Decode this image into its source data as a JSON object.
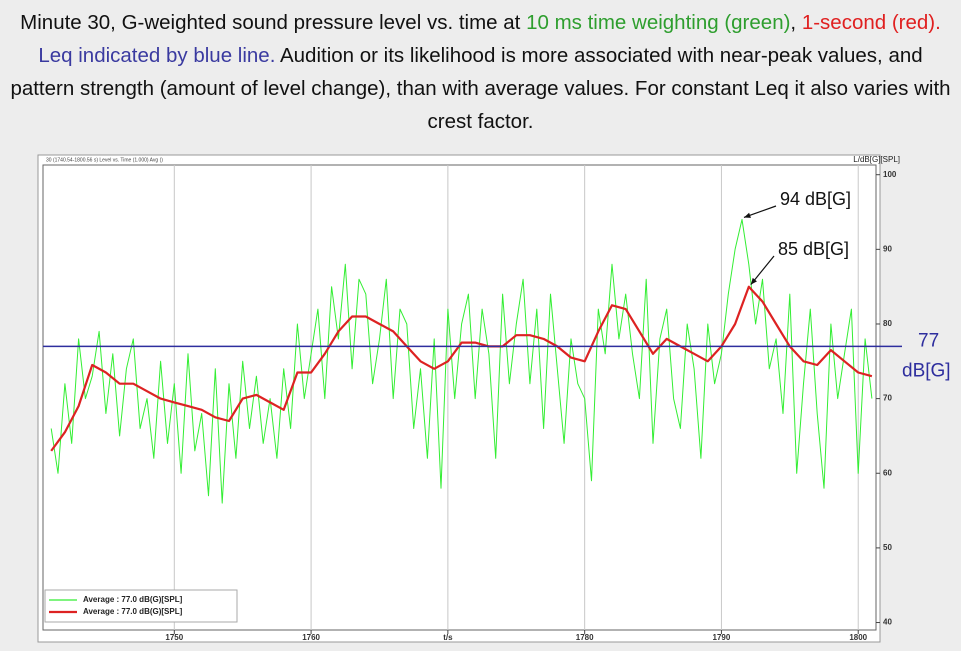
{
  "chart_data": {
    "type": "line",
    "title_parts": [
      {
        "text": "Minute 30, G-weighted sound pressure level vs. time at ",
        "color": "#111111"
      },
      {
        "text": "10 ms time weighting (green)",
        "color": "#2e9e2e"
      },
      {
        "text": ", ",
        "color": "#111111"
      },
      {
        "text": "1-second (red).",
        "color": "#e02020"
      },
      {
        "text": " ",
        "color": "#111111"
      },
      {
        "text": "Leq indicated by blue line.",
        "color": "#3a3aa0"
      },
      {
        "text": " Audition or its likelihood is more associated with near-peak values, and pattern strength (amount of level change), than with average values. For constant Leq it also varies with crest factor.",
        "color": "#111111"
      }
    ],
    "subtitle": "30 (1740.54-1800.56 s) Level vs. Time (1.000) Avg ()",
    "y_axis_label": "L/dB[G][SPL]",
    "xlim": [
      1740.4,
      1801.3
    ],
    "xticks": [
      1750,
      1760,
      {
        "value": 1770,
        "label": "t/s"
      },
      1780,
      1790,
      1800
    ],
    "ylim": [
      39,
      101.3
    ],
    "yticks": [
      40,
      50,
      60,
      70,
      80,
      90,
      100
    ],
    "grid": true,
    "legend": "lower left",
    "reference_line": {
      "value": 77,
      "color": "#2e2e9e",
      "label": [
        "77",
        "dB[G]"
      ]
    },
    "annotations": [
      {
        "text": "94 dB[G]",
        "x": 1791.5,
        "y": 94
      },
      {
        "text": "85 dB[G]",
        "x": 1792,
        "y": 85
      }
    ],
    "series": [
      {
        "name": "Average : 77.0 dB(G)[SPL]",
        "color": "#33ee33",
        "x": [
          1741,
          1741.5,
          1742,
          1742.5,
          1743,
          1743.5,
          1744,
          1744.5,
          1745,
          1745.5,
          1746,
          1746.5,
          1747,
          1747.5,
          1748,
          1748.5,
          1749,
          1749.5,
          1750,
          1750.5,
          1751,
          1751.5,
          1752,
          1752.5,
          1753,
          1753.5,
          1754,
          1754.5,
          1755,
          1755.5,
          1756,
          1756.5,
          1757,
          1757.5,
          1758,
          1758.5,
          1759,
          1759.5,
          1760,
          1760.5,
          1761,
          1761.5,
          1762,
          1762.5,
          1763,
          1763.5,
          1764,
          1764.5,
          1765,
          1765.5,
          1766,
          1766.5,
          1767,
          1767.5,
          1768,
          1768.5,
          1769,
          1769.5,
          1770,
          1770.5,
          1771,
          1771.5,
          1772,
          1772.5,
          1773,
          1773.5,
          1774,
          1774.5,
          1775,
          1775.5,
          1776,
          1776.5,
          1777,
          1777.5,
          1778,
          1778.5,
          1779,
          1779.5,
          1780,
          1780.5,
          1781,
          1781.5,
          1782,
          1782.5,
          1783,
          1783.5,
          1784,
          1784.5,
          1785,
          1785.5,
          1786,
          1786.5,
          1787,
          1787.5,
          1788,
          1788.5,
          1789,
          1789.5,
          1790,
          1790.5,
          1791,
          1791.5,
          1792,
          1792.5,
          1793,
          1793.5,
          1794,
          1794.5,
          1795,
          1795.5,
          1796,
          1796.5,
          1797,
          1797.5,
          1798,
          1798.5,
          1799,
          1799.5,
          1800,
          1800.5,
          1801
        ],
        "values": [
          66,
          60,
          72,
          64,
          78,
          70,
          73,
          79,
          68,
          76,
          65,
          74,
          78,
          66,
          70,
          62,
          75,
          64,
          72,
          60,
          76,
          63,
          68,
          57,
          74,
          56,
          72,
          62,
          75,
          66,
          73,
          64,
          70,
          62,
          74,
          66,
          80,
          70,
          76,
          82,
          70,
          85,
          78,
          88,
          74,
          86,
          84,
          72,
          78,
          86,
          70,
          82,
          80,
          66,
          74,
          62,
          78,
          58,
          82,
          70,
          80,
          84,
          70,
          82,
          76,
          62,
          84,
          72,
          80,
          86,
          72,
          82,
          66,
          84,
          74,
          64,
          78,
          72,
          70,
          59,
          82,
          76,
          88,
          78,
          84,
          76,
          70,
          86,
          64,
          78,
          82,
          70,
          66,
          80,
          74,
          62,
          80,
          72,
          76,
          84,
          90,
          94,
          88,
          80,
          86,
          74,
          78,
          68,
          84,
          60,
          72,
          82,
          68,
          58,
          80,
          70,
          76,
          82,
          60,
          78,
          70
        ]
      },
      {
        "name": "Average : 77.0 dB(G)[SPL]",
        "color": "#dd2222",
        "x": [
          1741,
          1742,
          1743,
          1744,
          1745,
          1746,
          1747,
          1748,
          1749,
          1750,
          1751,
          1752,
          1753,
          1754,
          1755,
          1756,
          1757,
          1758,
          1759,
          1760,
          1761,
          1762,
          1763,
          1764,
          1765,
          1766,
          1767,
          1768,
          1769,
          1770,
          1771,
          1772,
          1773,
          1774,
          1775,
          1776,
          1777,
          1778,
          1779,
          1780,
          1781,
          1782,
          1783,
          1784,
          1785,
          1786,
          1787,
          1788,
          1789,
          1790,
          1791,
          1792,
          1793,
          1794,
          1795,
          1796,
          1797,
          1798,
          1799,
          1800,
          1801
        ],
        "values": [
          63,
          65.5,
          69,
          74.5,
          73.5,
          72,
          72,
          71,
          70,
          69.5,
          69,
          68.5,
          67.5,
          67,
          70,
          70.5,
          69.5,
          68.5,
          73.5,
          73.5,
          76,
          79,
          81,
          81,
          80,
          79,
          77,
          75,
          74,
          75,
          77.5,
          77.5,
          77,
          77,
          78.5,
          78.5,
          78,
          77,
          75.5,
          75,
          79,
          82.5,
          82,
          79,
          76,
          78,
          77,
          76,
          75,
          77,
          80,
          85,
          83,
          80,
          77,
          75,
          74.5,
          76.5,
          75,
          73.5,
          73
        ]
      }
    ]
  }
}
